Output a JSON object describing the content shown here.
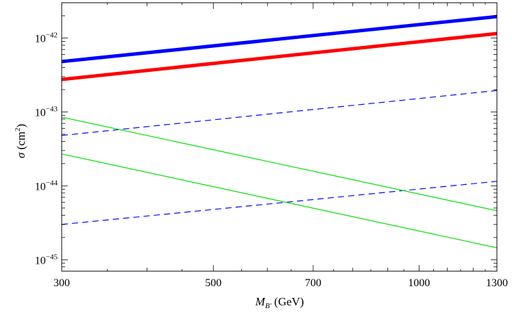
{
  "chart_data": {
    "type": "line",
    "xscale": "log",
    "yscale": "log",
    "xlim": [
      300,
      1300
    ],
    "ylim": [
      7e-46,
      3e-42
    ],
    "xlabel": {
      "main": "M",
      "sub": "B'",
      "unit": "(GeV)"
    },
    "ylabel": {
      "symbol": "σ",
      "unit": "(cm",
      "sup": "2",
      "close": ")"
    },
    "xticks": [
      {
        "value": 300,
        "label": "300"
      },
      {
        "value": 500,
        "label": "500"
      },
      {
        "value": 700,
        "label": "700"
      },
      {
        "value": 1000,
        "label": "1000"
      },
      {
        "value": 1300,
        "label": "1300"
      }
    ],
    "yticks": [
      {
        "value": 1e-42,
        "base": "10",
        "exp": "−42"
      },
      {
        "value": 1e-43,
        "base": "10",
        "exp": "−43"
      },
      {
        "value": 1e-44,
        "base": "10",
        "exp": "−44"
      },
      {
        "value": 1e-45,
        "base": "10",
        "exp": "−45"
      }
    ],
    "series": [
      {
        "x": [
          300,
          1300
        ],
        "y": [
          4.8e-43,
          1.95e-42
        ],
        "color": "#0000ff",
        "width": 5,
        "dash": "solid"
      },
      {
        "x": [
          300,
          1300
        ],
        "y": [
          2.75e-43,
          1.15e-42
        ],
        "color": "#ff0000",
        "width": 5,
        "dash": "solid"
      },
      {
        "x": [
          300,
          1300
        ],
        "y": [
          4.8e-44,
          1.95e-43
        ],
        "color": "#0000ff",
        "width": 1.2,
        "dash": "dashed"
      },
      {
        "x": [
          300,
          1300
        ],
        "y": [
          3e-45,
          1.15e-44
        ],
        "color": "#0000ff",
        "width": 1.2,
        "dash": "dashed"
      },
      {
        "x": [
          300,
          1300
        ],
        "y": [
          8.5e-44,
          4.6e-45
        ],
        "color": "#00e000",
        "width": 1.2,
        "dash": "solid"
      },
      {
        "x": [
          300,
          1300
        ],
        "y": [
          2.7e-44,
          1.45e-45
        ],
        "color": "#00e000",
        "width": 1.2,
        "dash": "solid"
      }
    ],
    "grid": false,
    "legend": "none"
  }
}
